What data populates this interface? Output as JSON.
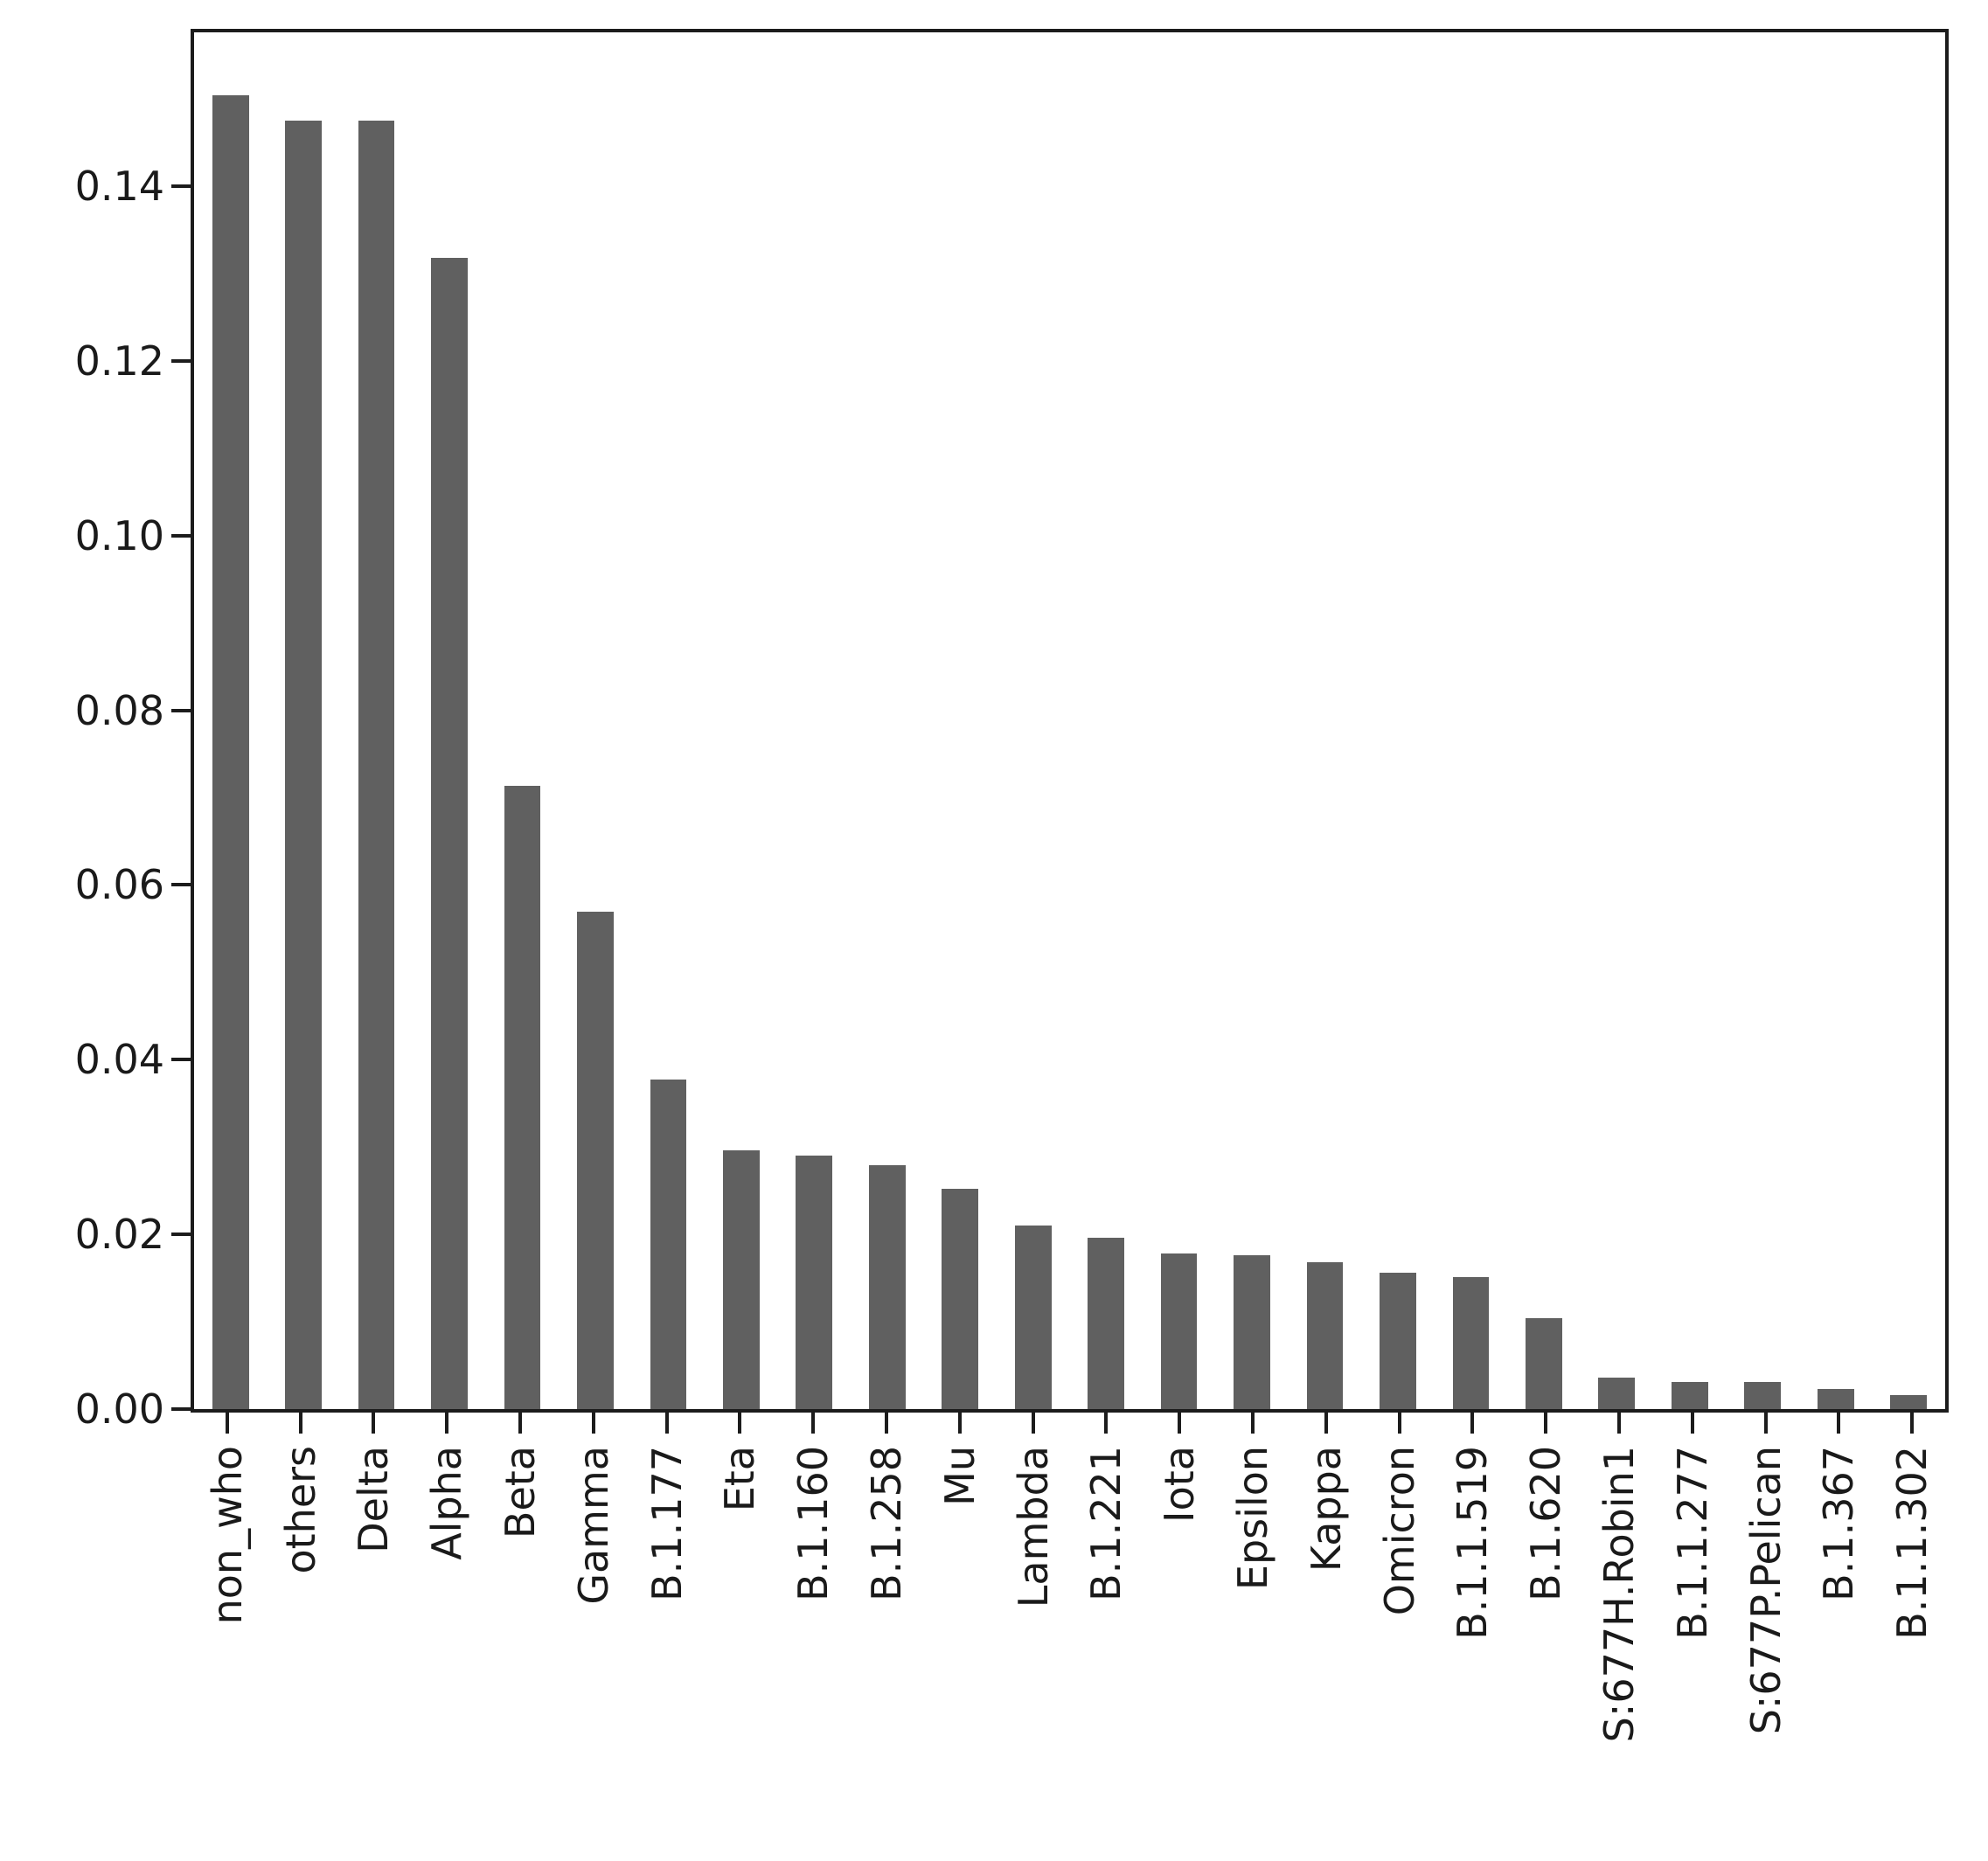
{
  "chart_data": {
    "type": "bar",
    "title": "",
    "xlabel": "",
    "ylabel": "",
    "categories": [
      "non_who",
      "others",
      "Delta",
      "Alpha",
      "Beta",
      "Gamma",
      "B.1.177",
      "Eta",
      "B.1.160",
      "B.1.258",
      "Mu",
      "Lambda",
      "B.1.221",
      "Iota",
      "Epsilon",
      "Kappa",
      "Omicron",
      "B.1.1.519",
      "B.1.620",
      "S:677H.Robin1",
      "B.1.1.277",
      "S:677P.Pelican",
      "B.1.367",
      "B.1.1.302"
    ],
    "values": [
      0.1504,
      0.1475,
      0.1475,
      0.1318,
      0.0713,
      0.0569,
      0.0377,
      0.0296,
      0.029,
      0.0279,
      0.0252,
      0.021,
      0.0196,
      0.0178,
      0.0176,
      0.0168,
      0.0156,
      0.0151,
      0.0104,
      0.0036,
      0.0031,
      0.0031,
      0.0023,
      0.0016
    ],
    "ylim": [
      0,
      0.158
    ],
    "y_ticks": [
      0.0,
      0.02,
      0.04,
      0.06,
      0.08,
      0.1,
      0.12,
      0.14
    ],
    "y_tick_labels": [
      "0.00",
      "0.02",
      "0.04",
      "0.06",
      "0.08",
      "0.10",
      "0.12",
      "0.14"
    ],
    "x_tick_rotation": 90,
    "grid": false,
    "legend": false,
    "bar_color": "#606060",
    "axis_color": "#1c1c1c",
    "text_color": "#1a1a1a"
  }
}
